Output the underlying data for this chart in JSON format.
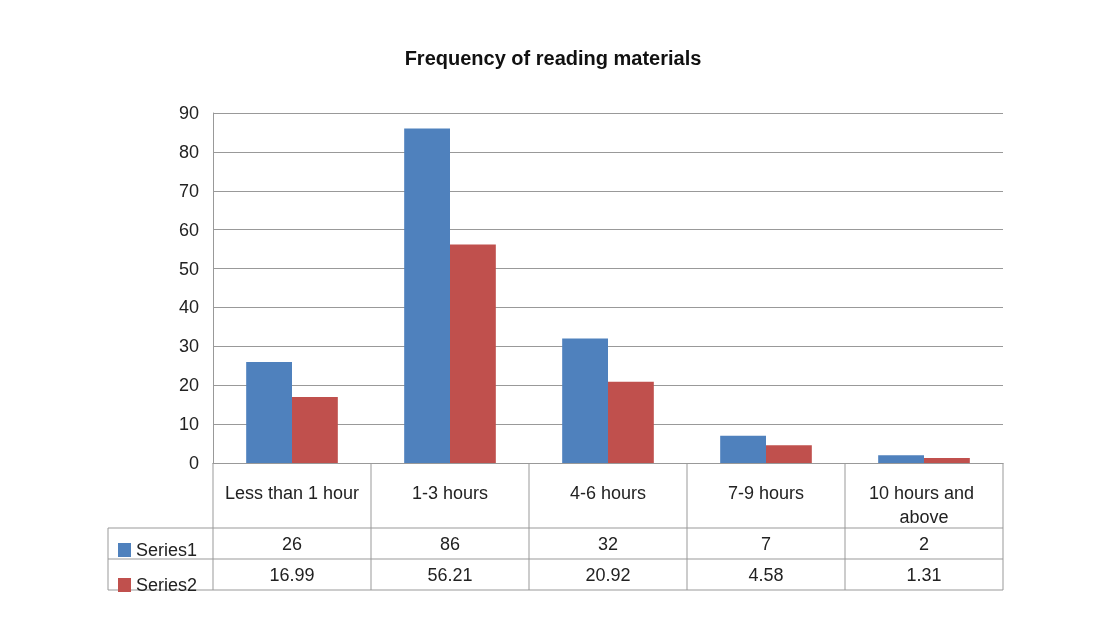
{
  "chart_data": {
    "type": "bar",
    "title": "Frequency of reading materials",
    "categories": [
      "Less than 1 hour",
      "1-3 hours",
      "4-6 hours",
      "7-9 hours",
      "10 hours and above"
    ],
    "series": [
      {
        "name": "Series1",
        "color": "#4f81bd",
        "values": [
          26,
          86,
          32,
          7,
          2
        ]
      },
      {
        "name": "Series2",
        "color": "#c0504d",
        "values": [
          16.99,
          56.21,
          20.92,
          4.58,
          1.31
        ]
      }
    ],
    "ylim": [
      0,
      90
    ],
    "yticks": [
      0,
      10,
      20,
      30,
      40,
      50,
      60,
      70,
      80,
      90
    ],
    "grid": "y",
    "legend": "bottom",
    "data_labels": true
  }
}
